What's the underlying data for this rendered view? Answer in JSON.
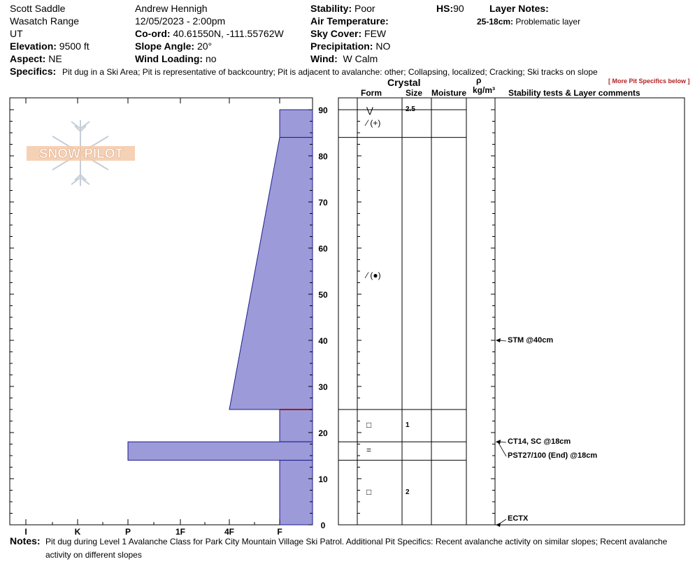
{
  "header": {
    "location_name": "Scott Saddle",
    "range": "Wasatch Range",
    "state": "UT",
    "elevation_label": "Elevation:",
    "elevation": "9500 ft",
    "aspect_label": "Aspect:",
    "aspect": "NE",
    "observer": "Andrew Hennigh",
    "datetime": "12/05/2023 - 2:00pm",
    "coord_label": "Co-ord:",
    "coord": "40.61550N, -111.55762W",
    "slope_label": "Slope Angle:",
    "slope": "20°",
    "wind_loading_label": "Wind Loading:",
    "wind_loading": "no",
    "stability_label": "Stability:",
    "stability": "Poor",
    "air_temp_label": "Air Temperature:",
    "sky_cover_label": "Sky Cover:",
    "sky_cover": "FEW",
    "precip_label": "Precipitation:",
    "precip": "NO",
    "wind_label": "Wind:",
    "wind": "W Calm",
    "hs_label": "HS:",
    "hs": "90",
    "layer_notes_label": "Layer Notes:",
    "layer_note_range": "25-18cm:",
    "layer_note_text": "Problematic layer",
    "specifics_label": "Specifics:",
    "specifics": "Pit dug in a Ski Area;  Pit is representative of backcountry;  Pit is adjacent to avalanche: other;  Collapsing, localized;  Cracking;  Ski tracks on slope",
    "more_specifics": "[ More Pit Specifics below ]"
  },
  "logo": {
    "text": "SNOW PILOT"
  },
  "columns": {
    "crystal": "Crystal",
    "form": "Form",
    "size": "Size",
    "moisture": "Moisture",
    "rho": "ρ",
    "density_unit": "kg/m³",
    "comments": "Stability tests & Layer comments"
  },
  "axis": {
    "hardness_labels": [
      "I",
      "K",
      "P",
      "1F",
      "4F",
      "F"
    ],
    "depth_labels": [
      "90",
      "80",
      "70",
      "60",
      "50",
      "40",
      "30",
      "20",
      "10",
      "0"
    ]
  },
  "chart_data": {
    "type": "bar",
    "title": "",
    "xlabel": "",
    "ylabel": "",
    "ylim": [
      0,
      90
    ],
    "hardness_scale": [
      "I",
      "K",
      "P",
      "1F",
      "4F",
      "F"
    ],
    "layers": [
      {
        "top": 90,
        "bottom": 84,
        "hardness_top": "F",
        "hardness_bottom": "F"
      },
      {
        "top": 84,
        "bottom": 25,
        "hardness_top": "F",
        "hardness_bottom": "4F"
      },
      {
        "top": 25,
        "bottom": 18,
        "hardness_top": "F",
        "hardness_bottom": "F"
      },
      {
        "top": 18,
        "bottom": 14,
        "hardness_top": "P",
        "hardness_bottom": "P"
      },
      {
        "top": 14,
        "bottom": 0,
        "hardness_top": "F",
        "hardness_bottom": "F"
      }
    ],
    "layer_colors": {
      "fill": "#9c9ad8",
      "stroke": "#1c1c8a",
      "weak_layer": "#a01c1c"
    }
  },
  "layers": [
    {
      "form": "⋁",
      "size": "2.5"
    },
    {
      "form": "⁄ (+)",
      "size": ""
    },
    {
      "form": "⁄ (●)",
      "size": ""
    },
    {
      "form": "□",
      "size": "1"
    },
    {
      "form": "=",
      "size": ""
    },
    {
      "form": "□",
      "size": "2"
    }
  ],
  "tests": [
    {
      "text": "STM @40cm"
    },
    {
      "text": "CT14, SC @18cm"
    },
    {
      "text": "PST27/100 (End) @18cm"
    },
    {
      "text": "ECTX"
    }
  ],
  "notes": {
    "label": "Notes:",
    "line1": "Pit dug during Level 1 Avalanche Class for Park City Mountain Village Ski Patrol. Additional Pit Specifics: Recent avalanche activity on similar slopes; Recent avalanche",
    "line2": "activity on different slopes"
  }
}
